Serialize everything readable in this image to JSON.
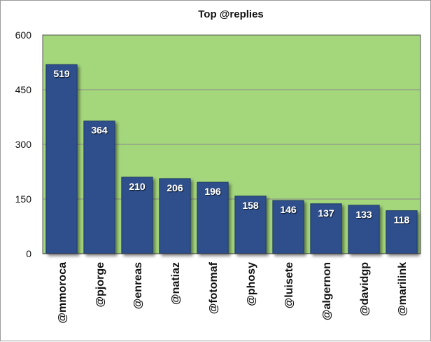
{
  "chart_data": {
    "type": "bar",
    "title": "Top @replies",
    "xlabel": "",
    "ylabel": "",
    "categories": [
      "@mmoroca",
      "@pjorge",
      "@enreas",
      "@natiaz",
      "@fotomaf",
      "@phosy",
      "@luisete",
      "@algernon",
      "@davidgp",
      "@marilink"
    ],
    "values": [
      519,
      364,
      210,
      206,
      196,
      158,
      146,
      137,
      133,
      118
    ],
    "ylim": [
      0,
      600
    ],
    "yticks": [
      "0",
      "150",
      "300",
      "450",
      "600"
    ],
    "grid": true,
    "legend": "none",
    "colors": {
      "plot_background": "#a4d67c",
      "bar": "#2f4f8c",
      "bar_edge": "#1f3868",
      "grid": "#8a8a8a"
    }
  }
}
